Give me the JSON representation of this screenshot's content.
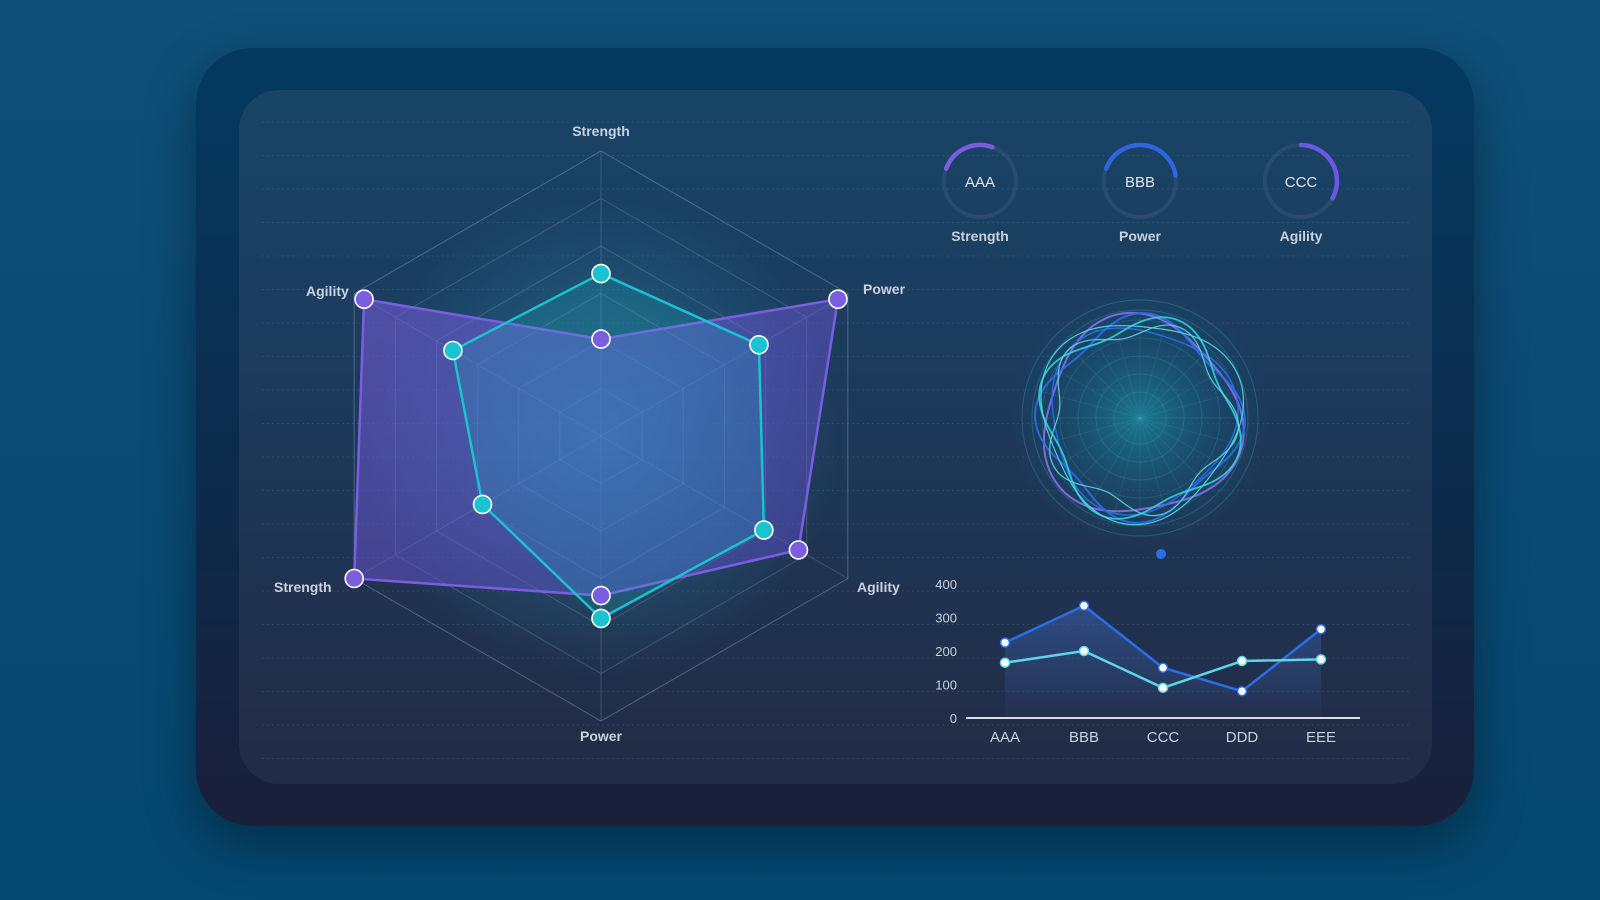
{
  "colors": {
    "purple": "#7b5ee0",
    "cyan": "#19c3cf",
    "blue": "#2a6ee8",
    "light_cyan": "#5fd6e6"
  },
  "gauges": [
    {
      "name": "AAA",
      "label": "Strength",
      "value": 0.25,
      "color": "#7b5ee0"
    },
    {
      "name": "BBB",
      "label": "Power",
      "value": 0.42,
      "color": "#2f66e0"
    },
    {
      "name": "CCC",
      "label": "Agility",
      "value": 0.33,
      "color": "#6b58e0"
    }
  ],
  "chart_data": [
    {
      "type": "radar",
      "axes": [
        "Strength",
        "Power",
        "Agility",
        "Power",
        "Strength",
        "Agility"
      ],
      "max": 5,
      "series": [
        {
          "values": [
            1.7,
            4.8,
            4.0,
            2.8,
            5.0,
            4.8
          ],
          "color": "#7b5ee0"
        },
        {
          "values": [
            2.85,
            3.2,
            3.3,
            3.2,
            2.4,
            3.0
          ],
          "color": "#19c3cf"
        }
      ]
    },
    {
      "type": "line",
      "categories": [
        "AAA",
        "BBB",
        "CCC",
        "DDD",
        "EEE"
      ],
      "ylim": [
        0,
        400
      ],
      "yticks": [
        "400",
        "300",
        "200",
        "100",
        "0"
      ],
      "series": [
        {
          "values": [
            225,
            335,
            150,
            80,
            265
          ],
          "color": "#2a6ee8"
        },
        {
          "values": [
            165,
            200,
            90,
            170,
            175
          ],
          "color": "#5fd6e6"
        }
      ]
    }
  ]
}
